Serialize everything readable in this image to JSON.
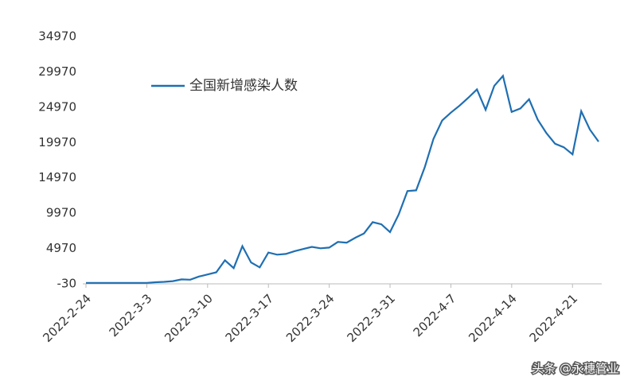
{
  "chart_data": {
    "type": "line",
    "categories": [
      "2022-2-24",
      null,
      null,
      null,
      null,
      null,
      null,
      "2022-3-3",
      null,
      null,
      null,
      null,
      null,
      null,
      "2022-3-10",
      null,
      null,
      null,
      null,
      null,
      null,
      "2022-3-17",
      null,
      null,
      null,
      null,
      null,
      null,
      "2022-3-24",
      null,
      null,
      null,
      null,
      null,
      null,
      "2022-3-31",
      null,
      null,
      null,
      null,
      null,
      null,
      "2022-4-7",
      null,
      null,
      null,
      null,
      null,
      null,
      "2022-4-14",
      null,
      null,
      null,
      null,
      null,
      null,
      "2022-4-21",
      null,
      null,
      null
    ],
    "series": [
      {
        "name": "全国新增感染人数",
        "color": "#1f6fb2",
        "values": [
          100,
          100,
          100,
          100,
          100,
          100,
          100,
          100,
          200,
          250,
          350,
          600,
          550,
          1000,
          1300,
          1600,
          3300,
          2200,
          5300,
          3000,
          2300,
          4400,
          4100,
          4200,
          4600,
          4900,
          5200,
          5000,
          5100,
          5900,
          5800,
          6500,
          7100,
          8700,
          8400,
          7300,
          9800,
          13100,
          13200,
          16500,
          20500,
          23100,
          24200,
          25200,
          26300,
          27500,
          24600,
          28000,
          29400,
          24300,
          24800,
          26100,
          23200,
          21300,
          19800,
          19300,
          18300,
          24400,
          21800,
          20100
        ]
      }
    ],
    "ylim": [
      -30,
      34970
    ],
    "yticks": [
      -30,
      4970,
      9970,
      14970,
      19970,
      24970,
      29970,
      34970
    ],
    "grid": false,
    "legend": "top-left",
    "watermark": "头条 @永穗管业"
  }
}
